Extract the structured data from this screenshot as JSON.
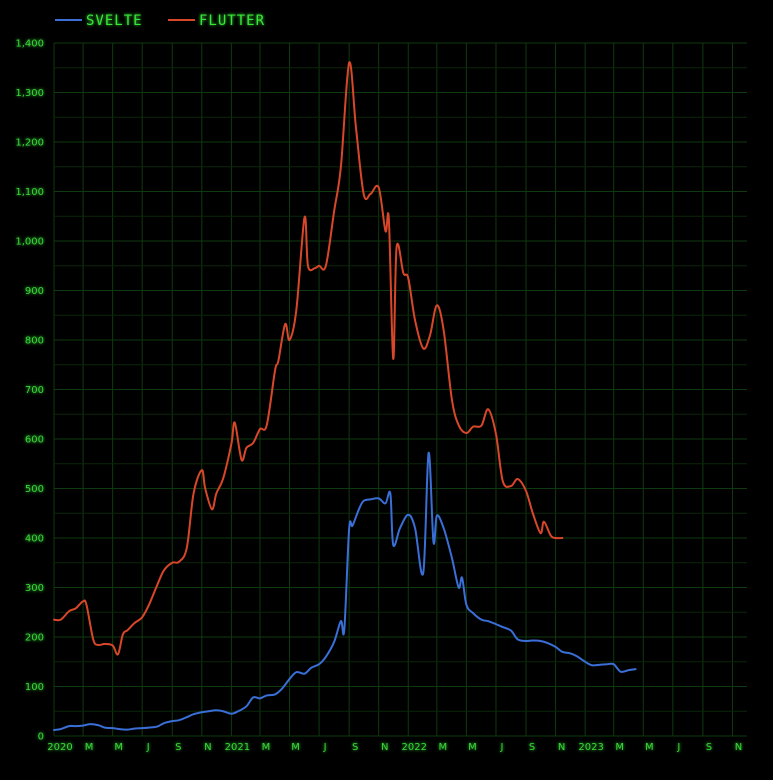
{
  "chart_data": {
    "type": "line",
    "title": "",
    "xlabel": "",
    "ylabel": "",
    "ylim": [
      0,
      1400
    ],
    "yticks": [
      0,
      100,
      200,
      300,
      400,
      500,
      600,
      700,
      800,
      900,
      1000,
      1100,
      1200,
      1300,
      1400
    ],
    "ytick_labels": [
      "0",
      "100",
      "200",
      "300",
      "400",
      "500",
      "600",
      "700",
      "800",
      "900",
      "1,000",
      "1,100",
      "1,200",
      "1,300",
      "1,400"
    ],
    "xlim": [
      "2020-01",
      "2023-12"
    ],
    "xticks": [
      "2020-01",
      "2020-03",
      "2020-05",
      "2020-07",
      "2020-09",
      "2020-11",
      "2021-01",
      "2021-03",
      "2021-05",
      "2021-07",
      "2021-09",
      "2021-11",
      "2022-01",
      "2022-03",
      "2022-05",
      "2022-07",
      "2022-09",
      "2022-11",
      "2023-01",
      "2023-03",
      "2023-05",
      "2023-07",
      "2023-09",
      "2023-11"
    ],
    "xtick_labels": [
      "2020",
      "M",
      "M",
      "J",
      "S",
      "N",
      "2021",
      "M",
      "M",
      "J",
      "S",
      "N",
      "2022",
      "M",
      "M",
      "J",
      "S",
      "N",
      "2023",
      "M",
      "M",
      "J",
      "S",
      "N"
    ],
    "grid": true,
    "legend_position": "top-left",
    "series": [
      {
        "name": "SVELTE",
        "color": "#3a6fd8",
        "points": [
          [
            "2020-01-01",
            12
          ],
          [
            "2020-01-15",
            14
          ],
          [
            "2020-02-01",
            20
          ],
          [
            "2020-02-15",
            20
          ],
          [
            "2020-03-01",
            21
          ],
          [
            "2020-03-15",
            24
          ],
          [
            "2020-04-01",
            22
          ],
          [
            "2020-04-15",
            17
          ],
          [
            "2020-05-01",
            16
          ],
          [
            "2020-05-15",
            14
          ],
          [
            "2020-06-01",
            13
          ],
          [
            "2020-06-15",
            15
          ],
          [
            "2020-07-01",
            16
          ],
          [
            "2020-07-15",
            17
          ],
          [
            "2020-08-01",
            19
          ],
          [
            "2020-08-15",
            26
          ],
          [
            "2020-09-01",
            30
          ],
          [
            "2020-09-15",
            32
          ],
          [
            "2020-10-01",
            38
          ],
          [
            "2020-10-15",
            44
          ],
          [
            "2020-11-01",
            48
          ],
          [
            "2020-11-15",
            50
          ],
          [
            "2020-12-01",
            52
          ],
          [
            "2020-12-15",
            50
          ],
          [
            "2021-01-01",
            45
          ],
          [
            "2021-01-15",
            50
          ],
          [
            "2021-02-01",
            60
          ],
          [
            "2021-02-15",
            78
          ],
          [
            "2021-03-01",
            76
          ],
          [
            "2021-03-15",
            82
          ],
          [
            "2021-04-01",
            84
          ],
          [
            "2021-04-15",
            95
          ],
          [
            "2021-05-01",
            115
          ],
          [
            "2021-05-15",
            129
          ],
          [
            "2021-06-01",
            126
          ],
          [
            "2021-06-15",
            138
          ],
          [
            "2021-07-01",
            145
          ],
          [
            "2021-07-15",
            160
          ],
          [
            "2021-08-01",
            190
          ],
          [
            "2021-08-15",
            232
          ],
          [
            "2021-08-22",
            215
          ],
          [
            "2021-09-01",
            418
          ],
          [
            "2021-09-08",
            425
          ],
          [
            "2021-09-22",
            460
          ],
          [
            "2021-10-01",
            475
          ],
          [
            "2021-10-15",
            478
          ],
          [
            "2021-11-01",
            480
          ],
          [
            "2021-11-15",
            470
          ],
          [
            "2021-11-25",
            490
          ],
          [
            "2021-12-01",
            386
          ],
          [
            "2021-12-15",
            420
          ],
          [
            "2022-01-01",
            447
          ],
          [
            "2022-01-15",
            420
          ],
          [
            "2022-02-01",
            330
          ],
          [
            "2022-02-12",
            572
          ],
          [
            "2022-02-22",
            392
          ],
          [
            "2022-03-01",
            445
          ],
          [
            "2022-03-15",
            420
          ],
          [
            "2022-04-01",
            360
          ],
          [
            "2022-04-15",
            300
          ],
          [
            "2022-04-22",
            320
          ],
          [
            "2022-05-01",
            265
          ],
          [
            "2022-05-15",
            248
          ],
          [
            "2022-06-01",
            235
          ],
          [
            "2022-06-15",
            232
          ],
          [
            "2022-07-01",
            226
          ],
          [
            "2022-07-15",
            220
          ],
          [
            "2022-08-01",
            213
          ],
          [
            "2022-08-15",
            195
          ],
          [
            "2022-09-01",
            192
          ],
          [
            "2022-09-15",
            193
          ],
          [
            "2022-10-01",
            192
          ],
          [
            "2022-10-15",
            188
          ],
          [
            "2022-11-01",
            180
          ],
          [
            "2022-11-15",
            170
          ],
          [
            "2022-12-01",
            167
          ],
          [
            "2022-12-15",
            161
          ],
          [
            "2023-01-01",
            150
          ],
          [
            "2023-01-15",
            143
          ],
          [
            "2023-02-01",
            144
          ],
          [
            "2023-02-15",
            145
          ],
          [
            "2023-03-01",
            145
          ],
          [
            "2023-03-15",
            130
          ],
          [
            "2023-04-01",
            133
          ],
          [
            "2023-04-15",
            135
          ]
        ]
      },
      {
        "name": "FLUTTER",
        "color": "#d8472a",
        "points": [
          [
            "2020-01-01",
            235
          ],
          [
            "2020-01-15",
            235
          ],
          [
            "2020-02-01",
            252
          ],
          [
            "2020-02-15",
            258
          ],
          [
            "2020-03-01",
            272
          ],
          [
            "2020-03-08",
            265
          ],
          [
            "2020-03-22",
            195
          ],
          [
            "2020-04-01",
            184
          ],
          [
            "2020-04-15",
            186
          ],
          [
            "2020-05-01",
            183
          ],
          [
            "2020-05-12",
            165
          ],
          [
            "2020-05-22",
            205
          ],
          [
            "2020-06-01",
            214
          ],
          [
            "2020-06-15",
            228
          ],
          [
            "2020-07-01",
            240
          ],
          [
            "2020-07-15",
            265
          ],
          [
            "2020-08-01",
            305
          ],
          [
            "2020-08-15",
            335
          ],
          [
            "2020-09-01",
            350
          ],
          [
            "2020-09-15",
            352
          ],
          [
            "2020-10-01",
            380
          ],
          [
            "2020-10-15",
            490
          ],
          [
            "2020-11-01",
            537
          ],
          [
            "2020-11-08",
            500
          ],
          [
            "2020-11-22",
            458
          ],
          [
            "2020-12-01",
            490
          ],
          [
            "2020-12-15",
            520
          ],
          [
            "2021-01-01",
            590
          ],
          [
            "2021-01-08",
            633
          ],
          [
            "2021-01-22",
            558
          ],
          [
            "2021-02-01",
            582
          ],
          [
            "2021-02-15",
            592
          ],
          [
            "2021-03-01",
            620
          ],
          [
            "2021-03-15",
            628
          ],
          [
            "2021-04-01",
            738
          ],
          [
            "2021-04-08",
            758
          ],
          [
            "2021-04-22",
            832
          ],
          [
            "2021-05-01",
            800
          ],
          [
            "2021-05-15",
            860
          ],
          [
            "2021-06-01",
            1048
          ],
          [
            "2021-06-08",
            950
          ],
          [
            "2021-06-22",
            945
          ],
          [
            "2021-07-01",
            950
          ],
          [
            "2021-07-15",
            950
          ],
          [
            "2021-08-01",
            1060
          ],
          [
            "2021-08-15",
            1150
          ],
          [
            "2021-09-01",
            1360
          ],
          [
            "2021-09-15",
            1230
          ],
          [
            "2021-10-01",
            1095
          ],
          [
            "2021-10-15",
            1095
          ],
          [
            "2021-11-01",
            1108
          ],
          [
            "2021-11-15",
            1020
          ],
          [
            "2021-11-22",
            1043
          ],
          [
            "2021-12-01",
            762
          ],
          [
            "2021-12-08",
            988
          ],
          [
            "2021-12-22",
            935
          ],
          [
            "2022-01-01",
            925
          ],
          [
            "2022-01-15",
            840
          ],
          [
            "2022-02-01",
            783
          ],
          [
            "2022-02-15",
            810
          ],
          [
            "2022-03-01",
            870
          ],
          [
            "2022-03-15",
            820
          ],
          [
            "2022-04-01",
            680
          ],
          [
            "2022-04-15",
            628
          ],
          [
            "2022-05-01",
            612
          ],
          [
            "2022-05-15",
            625
          ],
          [
            "2022-06-01",
            627
          ],
          [
            "2022-06-15",
            660
          ],
          [
            "2022-07-01",
            610
          ],
          [
            "2022-07-15",
            515
          ],
          [
            "2022-08-01",
            505
          ],
          [
            "2022-08-15",
            519
          ],
          [
            "2022-09-01",
            495
          ],
          [
            "2022-09-15",
            450
          ],
          [
            "2022-10-01",
            410
          ],
          [
            "2022-10-08",
            433
          ],
          [
            "2022-10-22",
            405
          ],
          [
            "2022-11-01",
            400
          ],
          [
            "2022-11-15",
            400
          ]
        ]
      }
    ]
  }
}
